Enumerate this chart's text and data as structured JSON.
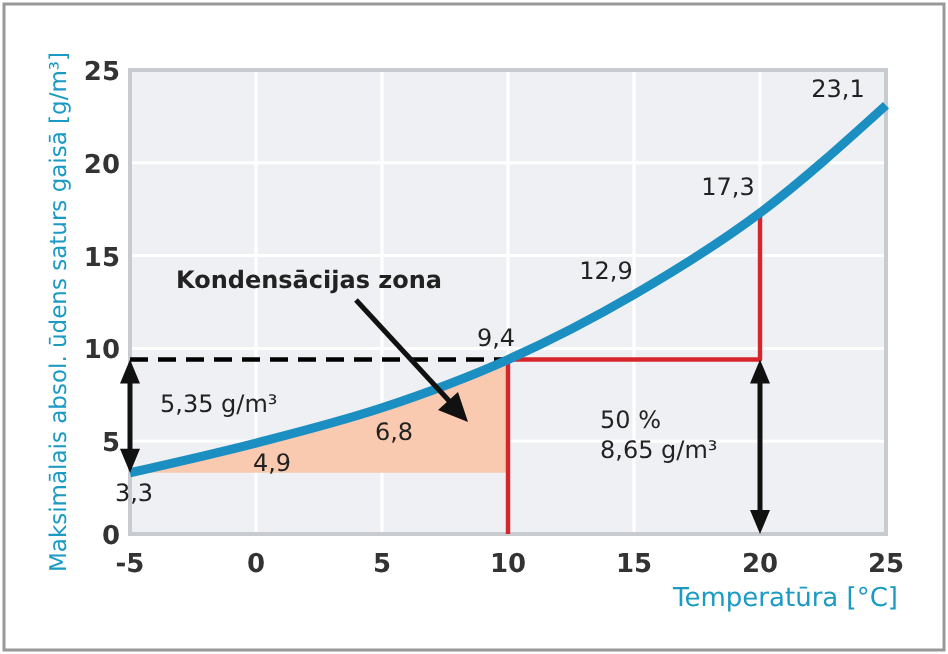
{
  "chart_data": {
    "type": "line",
    "xlabel": "Temperatūra [°C]",
    "ylabel": "Maksimālais absol. ūdens saturs gaisā [g/m³]",
    "xlim": [
      -5,
      25
    ],
    "xticks": [
      -5,
      0,
      5,
      10,
      15,
      20,
      25
    ],
    "ylim": [
      0,
      25
    ],
    "yticks": [
      0,
      5,
      10,
      15,
      20,
      25
    ],
    "grid": true,
    "series": [
      {
        "type": "area",
        "color": "#f9c9b0",
        "x": [
          -5,
          0,
          5,
          10
        ],
        "values": [
          3.3,
          4.9,
          6.8,
          9.4
        ]
      },
      {
        "color": "#000000",
        "line_style": "dashed",
        "x": [
          -5,
          10
        ],
        "values": [
          9.4,
          9.4
        ]
      },
      {
        "color": "#d7262b",
        "x": [
          10,
          10,
          20,
          20
        ],
        "values": [
          0,
          9.4,
          9.4,
          17.3
        ]
      },
      {
        "color": "#1b8fc2",
        "x": [
          -5,
          0,
          5,
          10,
          15,
          20,
          25
        ],
        "values": [
          3.3,
          4.9,
          6.8,
          9.4,
          12.9,
          17.3,
          23.1
        ],
        "value_labels": [
          "3,3",
          "4,9",
          "6,8",
          "9,4",
          "12,9",
          "17,3",
          "23,1"
        ]
      }
    ],
    "annotations": [
      "Kondensācijas zona",
      "5,35 g/m³",
      "50 %\n8,65 g/m³"
    ]
  }
}
